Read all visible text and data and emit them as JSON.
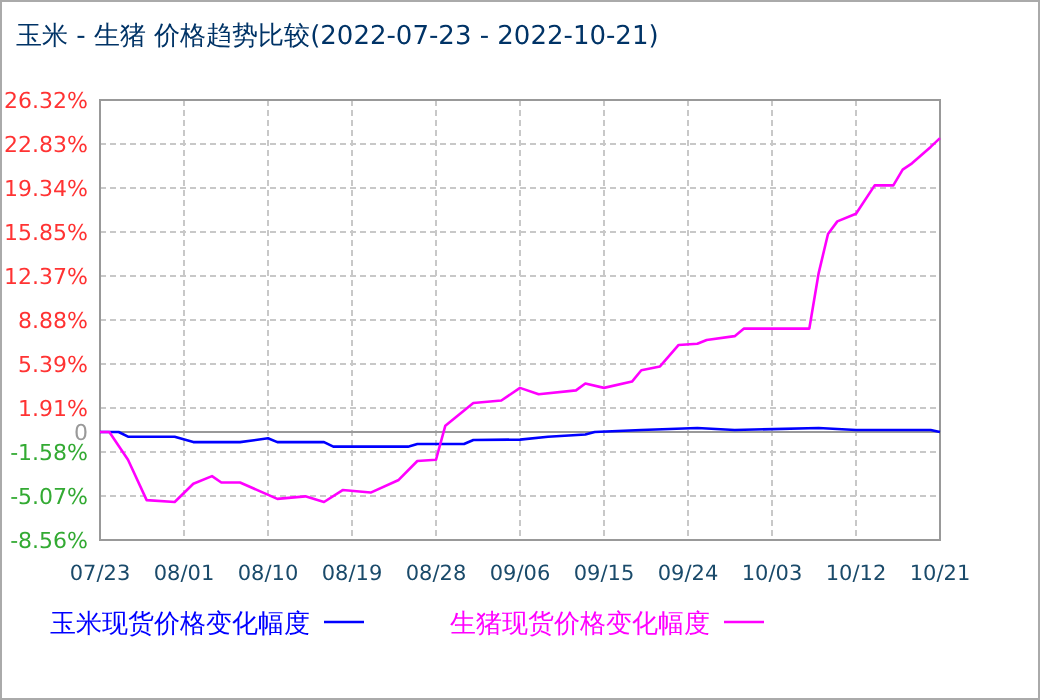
{
  "chart_data": {
    "type": "line",
    "title": "玉米 - 生猪 价格趋势比较(2022-07-23 - 2022-10-21)",
    "xlim": [
      "2022-07-23",
      "2022-10-21"
    ],
    "xticks": [
      {
        "value": "2022-07-23",
        "label": "07/23"
      },
      {
        "value": "2022-08-01",
        "label": "08/01"
      },
      {
        "value": "2022-08-10",
        "label": "08/10"
      },
      {
        "value": "2022-08-19",
        "label": "08/19"
      },
      {
        "value": "2022-08-28",
        "label": "08/28"
      },
      {
        "value": "2022-09-06",
        "label": "09/06"
      },
      {
        "value": "2022-09-15",
        "label": "09/15"
      },
      {
        "value": "2022-09-24",
        "label": "09/24"
      },
      {
        "value": "2022-10-03",
        "label": "10/03"
      },
      {
        "value": "2022-10-12",
        "label": "10/12"
      },
      {
        "value": "2022-10-21",
        "label": "10/21"
      }
    ],
    "ylim": [
      -8.56,
      26.32
    ],
    "yticks": [
      {
        "value": 26.32,
        "label": "26.32%"
      },
      {
        "value": 22.83,
        "label": "22.83%"
      },
      {
        "value": 19.34,
        "label": "19.34%"
      },
      {
        "value": 15.85,
        "label": "15.85%"
      },
      {
        "value": 12.37,
        "label": "12.37%"
      },
      {
        "value": 8.88,
        "label": "8.88%"
      },
      {
        "value": 5.39,
        "label": "5.39%"
      },
      {
        "value": 1.91,
        "label": "1.91%"
      },
      {
        "value": 0,
        "label": "0"
      },
      {
        "value": -1.58,
        "label": "-1.58%"
      },
      {
        "value": -5.07,
        "label": "-5.07%"
      },
      {
        "value": -8.56,
        "label": "-8.56%"
      }
    ],
    "grid": true,
    "legend": "bottom",
    "line_style": "solid",
    "marker": "none",
    "series": [
      {
        "name": "玉米现货价格变化幅度",
        "color": "#0000ff",
        "x": [
          "2022-07-23",
          "2022-07-25",
          "2022-07-26",
          "2022-07-31",
          "2022-08-02",
          "2022-08-07",
          "2022-08-10",
          "2022-08-11",
          "2022-08-16",
          "2022-08-17",
          "2022-08-25",
          "2022-08-26",
          "2022-08-31",
          "2022-09-01",
          "2022-09-06",
          "2022-09-09",
          "2022-09-13",
          "2022-09-14",
          "2022-09-19",
          "2022-09-25",
          "2022-09-29",
          "2022-10-08",
          "2022-10-12",
          "2022-10-20",
          "2022-10-21"
        ],
        "values": [
          0,
          0,
          -0.37,
          -0.37,
          -0.8,
          -0.8,
          -0.5,
          -0.8,
          -0.8,
          -1.16,
          -1.16,
          -0.95,
          -0.95,
          -0.63,
          -0.6,
          -0.37,
          -0.2,
          0,
          0.16,
          0.32,
          0.16,
          0.32,
          0.16,
          0.16,
          0
        ]
      },
      {
        "name": "生猪现货价格变化幅度",
        "color": "#ff00ff",
        "x": [
          "2022-07-23",
          "2022-07-24",
          "2022-07-26",
          "2022-07-28",
          "2022-07-31",
          "2022-08-02",
          "2022-08-04",
          "2022-08-05",
          "2022-08-07",
          "2022-08-11",
          "2022-08-14",
          "2022-08-16",
          "2022-08-18",
          "2022-08-21",
          "2022-08-24",
          "2022-08-26",
          "2022-08-28",
          "2022-08-29",
          "2022-09-01",
          "2022-09-04",
          "2022-09-06",
          "2022-09-08",
          "2022-09-12",
          "2022-09-13",
          "2022-09-15",
          "2022-09-18",
          "2022-09-19",
          "2022-09-21",
          "2022-09-23",
          "2022-09-25",
          "2022-09-26",
          "2022-09-29",
          "2022-09-30",
          "2022-10-07",
          "2022-10-08",
          "2022-10-09",
          "2022-10-10",
          "2022-10-12",
          "2022-10-14",
          "2022-10-16",
          "2022-10-17",
          "2022-10-18",
          "2022-10-20",
          "2022-10-21"
        ],
        "values": [
          0,
          0,
          -2.2,
          -5.4,
          -5.55,
          -4.1,
          -3.5,
          -4,
          -4,
          -5.3,
          -5.1,
          -5.55,
          -4.6,
          -4.8,
          -3.8,
          -2.3,
          -2.2,
          0.5,
          2.3,
          2.5,
          3.5,
          3,
          3.3,
          3.85,
          3.5,
          4,
          4.9,
          5.2,
          6.9,
          7,
          7.3,
          7.6,
          8.2,
          8.2,
          12.6,
          15.7,
          16.7,
          17.3,
          19.55,
          19.55,
          20.8,
          21.3,
          22.6,
          23.3
        ]
      }
    ]
  }
}
